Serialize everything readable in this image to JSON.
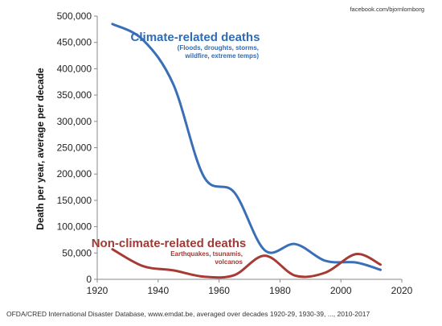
{
  "chart_data": {
    "type": "line",
    "credit": "facebook.com/bjornlomborg",
    "ylabel": "Death per year, average per decade",
    "xlabel": "",
    "xlim": [
      1920,
      2020
    ],
    "ylim": [
      0,
      500000
    ],
    "x_ticks": [
      "1920",
      "1940",
      "1960",
      "1980",
      "2000",
      "2020"
    ],
    "y_ticks": [
      "0",
      "50,000",
      "100,000",
      "150,000",
      "200,000",
      "250,000",
      "300,000",
      "350,000",
      "400,000",
      "450,000",
      "500,000"
    ],
    "grid": false,
    "series": [
      {
        "name": "Climate-related deaths",
        "note": "(Floods, droughts, storms, wildfire, extreme temps)",
        "color": "#3a6fb7",
        "x": [
          1925,
          1935,
          1945,
          1955,
          1965,
          1975,
          1985,
          1995,
          2005,
          2013
        ],
        "y": [
          485000,
          455000,
          370000,
          195000,
          165000,
          55000,
          67000,
          35000,
          32000,
          18000
        ]
      },
      {
        "name": "Non-climate-related deaths",
        "note": "Earthquakes, tsunamis, volcanos",
        "color": "#a63b36",
        "x": [
          1925,
          1935,
          1945,
          1955,
          1965,
          1975,
          1985,
          1995,
          2005,
          2013
        ],
        "y": [
          57000,
          25000,
          17000,
          5000,
          8000,
          45000,
          7000,
          13000,
          48000,
          28000
        ]
      }
    ],
    "source": "OFDA/CRED International Disaster Database, www.emdat.be, averaged over decades 1920-29, 1930-39, ..., 2010-2017"
  }
}
